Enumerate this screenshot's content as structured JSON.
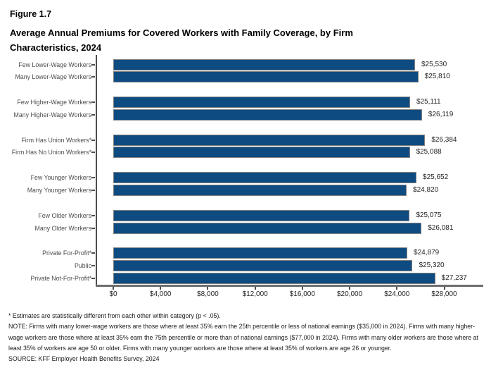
{
  "header": {
    "figure_label": "Figure 1.7",
    "title": "Average Annual Premiums for Covered Workers with Family Coverage, by Firm Characteristics, 2024"
  },
  "chart_data": {
    "type": "bar",
    "orientation": "horizontal",
    "title": "Average Annual Premiums for Covered Workers with Family Coverage, by Firm Characteristics, 2024",
    "categories": [
      "Few Lower-Wage Workers",
      "Many Lower-Wage Workers",
      "Few Higher-Wage Workers",
      "Many Higher-Wage Workers",
      "Firm Has Union Workers*",
      "Firm Has No Union Workers*",
      "Few Younger Workers",
      "Many Younger Workers",
      "Few Older Workers",
      "Many Older Workers",
      "Private For-Profit*",
      "Public",
      "Private Not-For-Profit*"
    ],
    "values": [
      25530,
      25810,
      25111,
      26119,
      26384,
      25088,
      25652,
      24820,
      25075,
      26081,
      24879,
      25320,
      27237
    ],
    "value_labels": [
      "$25,530",
      "$25,810",
      "$25,111",
      "$26,119",
      "$26,384",
      "$25,088",
      "$25,652",
      "$24,820",
      "$25,075",
      "$26,081",
      "$24,879",
      "$25,320",
      "$27,237"
    ],
    "groups": [
      2,
      2,
      2,
      2,
      2,
      3
    ],
    "xlim": [
      0,
      28000
    ],
    "xticks": {
      "values": [
        0,
        4000,
        8000,
        12000,
        16000,
        20000,
        24000,
        28000
      ],
      "labels": [
        "$0",
        "$4,000",
        "$8,000",
        "$12,000",
        "$16,000",
        "$20,000",
        "$24,000",
        "$28,000"
      ]
    },
    "grid": false,
    "legend": "none",
    "bar_color": "#0e4b81",
    "bar_border_color": "#828282"
  },
  "footnotes": {
    "asterisk": "* Estimates are statistically different from each other within category (p < .05).",
    "note": "NOTE: Firms with many lower-wage workers are those where at least 35% earn the 25th percentile or less of national earnings ($35,000 in 2024). Firms with many higher-wage workers are those where at least 35% earn the 75th percentile or more than of national earnings ($77,000 in 2024). Firms with many older workers are those where at least 35% of workers are age 50 or older. Firms with many younger workers are those where at least 35% of workers are age 26 or younger.",
    "source": "SOURCE: KFF Employer Health Benefits Survey, 2024"
  }
}
